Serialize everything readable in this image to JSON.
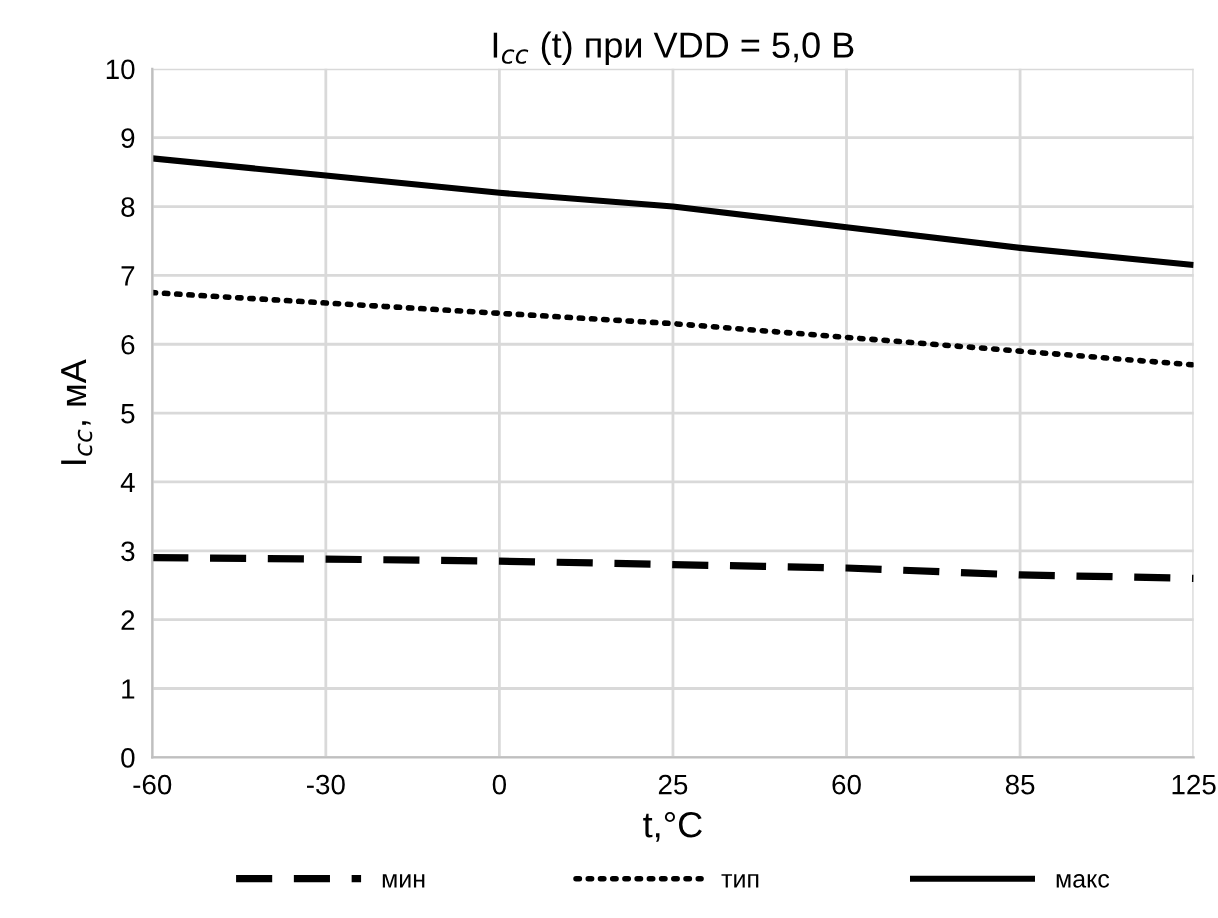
{
  "chart_data": {
    "type": "line",
    "title": "I$_{cc}$ (t) при VDD = 5,0 В",
    "xlabel": "t,°C",
    "ylabel": "I$_{cc}$, мА",
    "categories": [
      "-60",
      "-30",
      "0",
      "25",
      "60",
      "85",
      "125"
    ],
    "series": [
      {
        "name": "мин",
        "color": "#000000",
        "line_style": "dashed",
        "values": [
          2.9,
          2.88,
          2.85,
          2.8,
          2.75,
          2.65,
          2.6
        ]
      },
      {
        "name": "тип",
        "color": "#000000",
        "line_style": "dotted",
        "values": [
          6.75,
          6.6,
          6.45,
          6.3,
          6.1,
          5.9,
          5.7
        ]
      },
      {
        "name": "макс",
        "color": "#000000",
        "line_style": "solid",
        "values": [
          8.7,
          8.45,
          8.2,
          8.0,
          7.7,
          7.4,
          7.15
        ]
      }
    ],
    "ylim": [
      0,
      10
    ],
    "yticks": [
      0,
      1,
      2,
      3,
      4,
      5,
      6,
      7,
      8,
      9,
      10
    ],
    "grid": true,
    "legend": "bottom",
    "marker": "none"
  }
}
